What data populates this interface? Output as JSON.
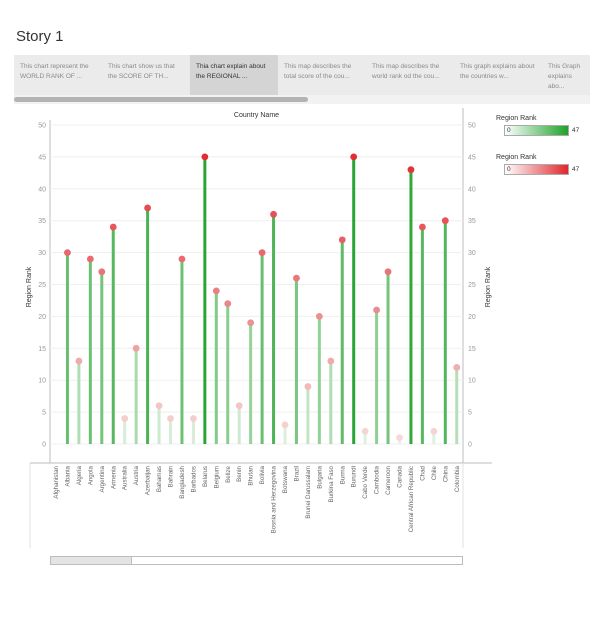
{
  "story": {
    "title": "Story 1",
    "tabs": [
      {
        "label": "This chart represent the WORLD RANK OF ...",
        "active": false
      },
      {
        "label": "This chart show us that the SCORE OF TH...",
        "active": false
      },
      {
        "label": "Thia chart explain about the REGIONAL ...",
        "active": true
      },
      {
        "label": "This map describes the total score of the cou...",
        "active": false
      },
      {
        "label": "This map describes the world rank od the cou...",
        "active": false
      },
      {
        "label": "This graph explains about the countries w...",
        "active": false
      },
      {
        "label": "This Graph explains abo...",
        "active": false
      }
    ]
  },
  "legends": [
    {
      "title": "Region Rank",
      "min": "0",
      "max": "47",
      "color": "#1fa12a"
    },
    {
      "title": "Region Rank",
      "min": "0",
      "max": "47",
      "color": "#e0262b"
    }
  ],
  "chart_data": {
    "type": "lollipop",
    "title": "Country Name",
    "xlabel": "",
    "ylabel": "Region Rank",
    "ylabel_right": "Region Rank",
    "ylim": [
      0,
      50
    ],
    "yticks": [
      0,
      5,
      10,
      15,
      20,
      25,
      30,
      35,
      40,
      45,
      50
    ],
    "grid": true,
    "color_max": 47,
    "categories": [
      "Afghanistan",
      "Albania",
      "Algeria",
      "Angola",
      "Argentina",
      "Armenia",
      "Australia",
      "Austria",
      "Azerbaijan",
      "Bahamas",
      "Bahrain",
      "Bangladesh",
      "Barbados",
      "Belarus",
      "Belgium",
      "Belize",
      "Benin",
      "Bhutan",
      "Bolivia",
      "Bosnia and Herzegovina",
      "Botswana",
      "Brazil",
      "Brunei Darussalam",
      "Bulgaria",
      "Burkina Faso",
      "Burma",
      "Burundi",
      "Cabo Verde",
      "Cambodia",
      "Cameroon",
      "Canada",
      "Central African Republic",
      "Chad",
      "Chile",
      "China",
      "Colombia"
    ],
    "values": [
      null,
      30,
      13,
      29,
      27,
      34,
      4,
      15,
      37,
      6,
      4,
      29,
      4,
      45,
      24,
      22,
      6,
      19,
      30,
      36,
      3,
      26,
      9,
      20,
      13,
      32,
      45,
      2,
      21,
      27,
      1,
      43,
      34,
      2,
      35,
      12
    ]
  }
}
